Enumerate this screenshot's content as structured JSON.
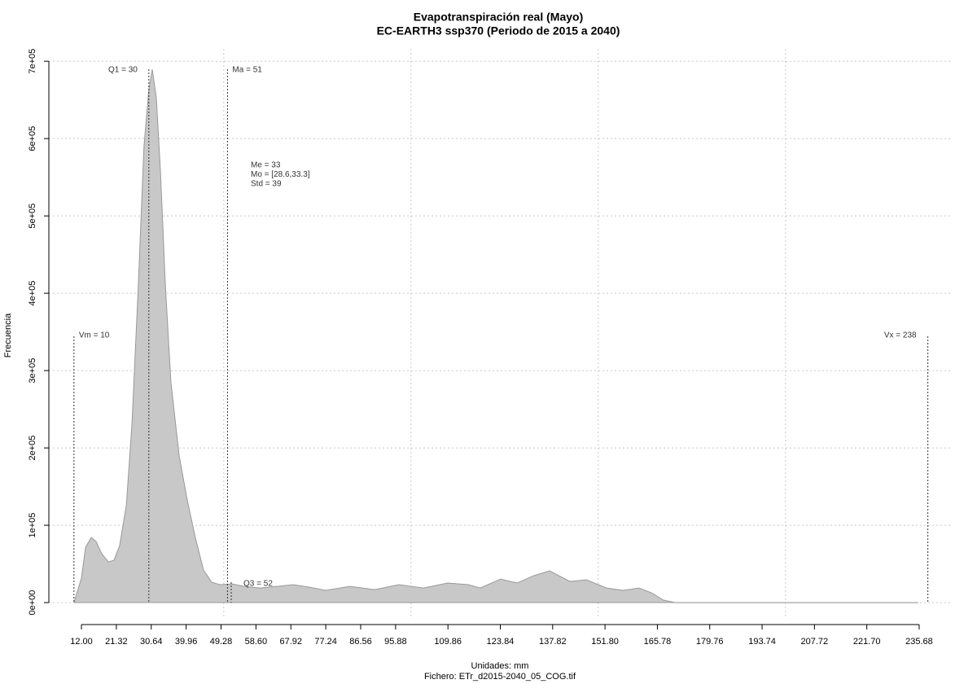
{
  "chart_data": {
    "type": "area",
    "title": "Evapotranspiración real (Mayo)",
    "subtitle": "EC-EARTH3 ssp370 (Periodo de 2015 a 2040)",
    "x_label": "Unidades: mm",
    "caption": "Fichero: ETr_d2015-2040_05_COG.tif",
    "y_label": "Frecuencia",
    "color": "#c8c8c8",
    "line_color": "#999999",
    "x": [
      10.0,
      12.0,
      13.1,
      14.6,
      15.9,
      17.4,
      19.2,
      20.7,
      22.2,
      24.0,
      25.5,
      27.2,
      28.7,
      30.0,
      30.9,
      32.0,
      33.1,
      34.4,
      35.9,
      38.1,
      40.3,
      42.4,
      44.6,
      46.8,
      49.0,
      52.2,
      55.5,
      59.8,
      64.2,
      68.5,
      72.9,
      77.2,
      83.7,
      90.3,
      96.8,
      103.3,
      109.8,
      115.3,
      118.5,
      123.9,
      128.3,
      132.7,
      137.0,
      142.4,
      146.8,
      152.2,
      156.6,
      160.9,
      164.2,
      167.4,
      170.7,
      235.3
    ],
    "values": [
      0,
      31600,
      71600,
      84200,
      79000,
      63200,
      52600,
      54700,
      73700,
      126300,
      231600,
      410500,
      589500,
      663200,
      689500,
      652600,
      557900,
      410500,
      284200,
      189500,
      131600,
      84200,
      42100,
      26300,
      23200,
      24200,
      21000,
      18900,
      21000,
      23200,
      20000,
      15800,
      21000,
      16800,
      23200,
      18900,
      25300,
      23200,
      18900,
      30500,
      25300,
      34700,
      41100,
      27400,
      29500,
      18900,
      15800,
      18900,
      12600,
      3200,
      0,
      0
    ],
    "xlim": [
      3.3,
      244.6
    ],
    "ylim": [
      -21000,
      716000
    ],
    "xticks": [
      {
        "value": 12,
        "label": "12.00"
      },
      21.32,
      30.64,
      39.96,
      49.28,
      {
        "value": 58.6,
        "label": "58.60"
      },
      67.92,
      77.24,
      86.56,
      95.88,
      109.86,
      123.84,
      137.82,
      {
        "value": 151.8,
        "label": "151.80"
      },
      165.78,
      179.76,
      193.74,
      207.72,
      {
        "value": 221.7,
        "label": "221.70"
      },
      235.68
    ],
    "yticks": [
      {
        "value": 0,
        "label": "0e+00"
      },
      {
        "value": 100000,
        "label": "1e+05"
      },
      {
        "value": 200000,
        "label": "2e+05"
      },
      {
        "value": 300000,
        "label": "3e+05"
      },
      {
        "value": 400000,
        "label": "4e+05"
      },
      {
        "value": 500000,
        "label": "5e+05"
      },
      {
        "value": 600000,
        "label": "6e+05"
      },
      {
        "value": 700000,
        "label": "7e+05"
      }
    ],
    "xgrid": [
      50,
      100,
      150,
      200
    ],
    "grid": true,
    "annotations": [
      {
        "label": "Vm = 10",
        "x": 10
      },
      {
        "label": "Q1 = 30",
        "x": 30
      },
      {
        "label": "Ma = 51",
        "x": 51
      },
      {
        "label": "Q3 = 52",
        "x": 52
      },
      {
        "label": "Vx = 238",
        "x": 238
      }
    ],
    "stats": [
      "Me = 33",
      "Mo = [28.6,33.3]",
      "Std = 39"
    ]
  }
}
